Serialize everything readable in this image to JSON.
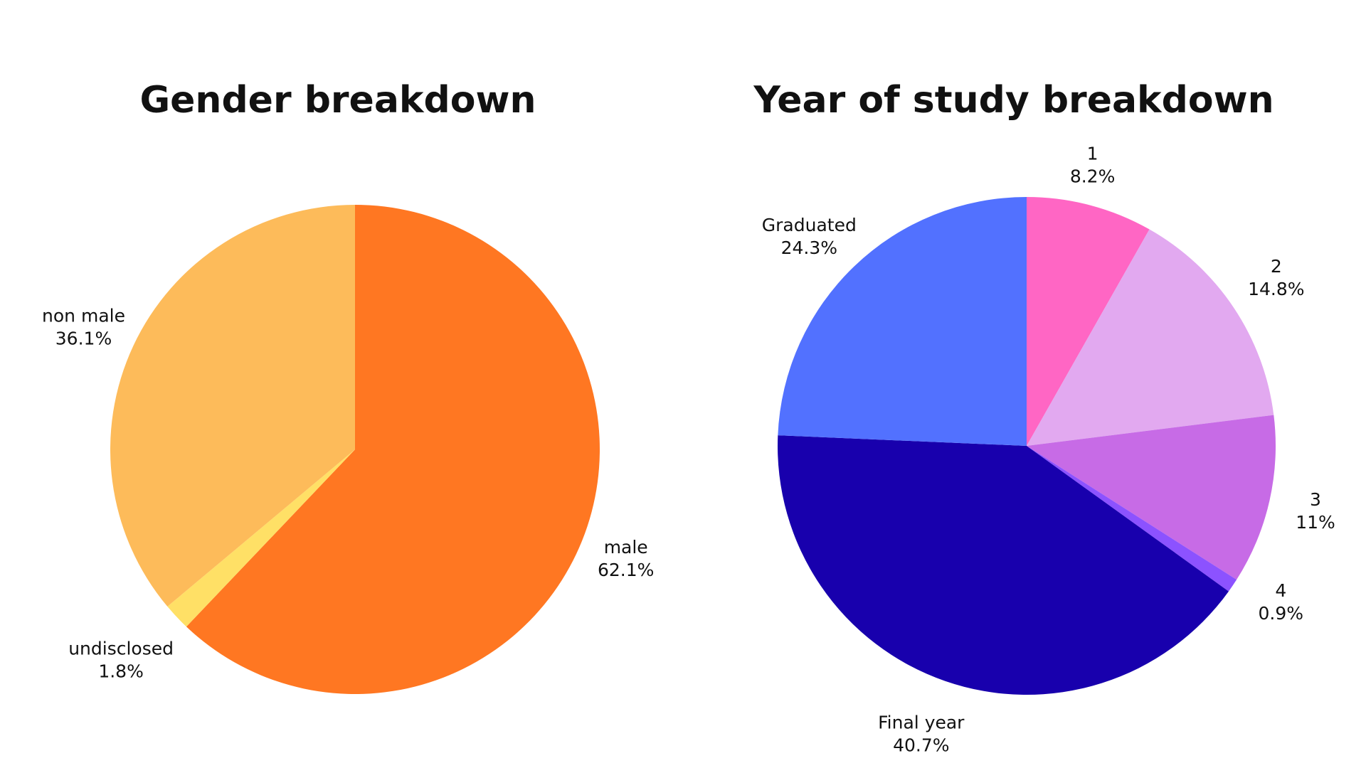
{
  "chart_data": [
    {
      "type": "pie",
      "title": "Gender breakdown",
      "slices": [
        {
          "label": "male",
          "value_label": "62.1%",
          "value": 62.1,
          "color": "#FF7722"
        },
        {
          "label": "undisclosed",
          "value_label": "1.8%",
          "value": 1.8,
          "color": "#FFE066"
        },
        {
          "label": "non male",
          "value_label": "36.1%",
          "value": 36.1,
          "color": "#FDBB5A"
        }
      ]
    },
    {
      "type": "pie",
      "title": "Year of study breakdown",
      "slices": [
        {
          "label": "1",
          "value_label": "8.2%",
          "value": 8.2,
          "color": "#FF66C4"
        },
        {
          "label": "2",
          "value_label": "14.8%",
          "value": 14.8,
          "color": "#E2A9F0"
        },
        {
          "label": "3",
          "value_label": "11%",
          "value": 11,
          "color": "#C76BE6"
        },
        {
          "label": "4",
          "value_label": "0.9%",
          "value": 0.9,
          "color": "#8C52FF"
        },
        {
          "label": "Final year",
          "value_label": "40.7%",
          "value": 40.7,
          "color": "#1800AD"
        },
        {
          "label": "Graduated",
          "value_label": "24.3%",
          "value": 24.3,
          "color": "#5271FF"
        }
      ]
    }
  ]
}
